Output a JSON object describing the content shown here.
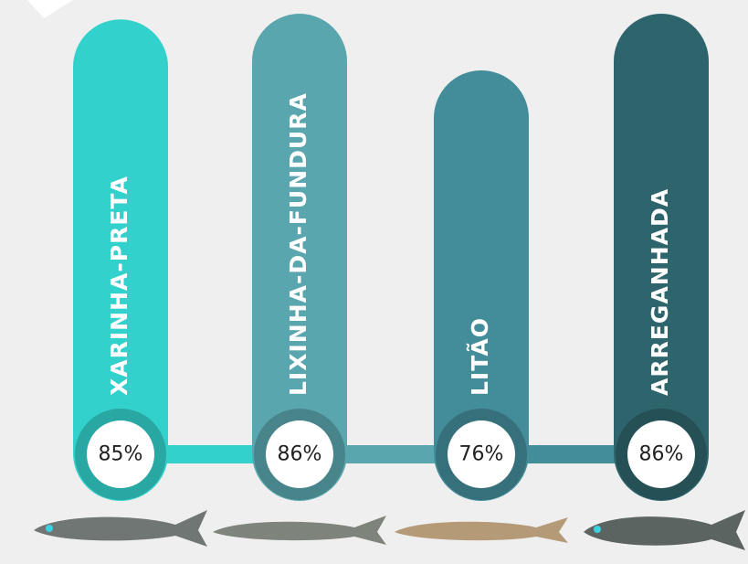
{
  "chart_data": {
    "type": "bar",
    "categories": [
      "XARINHA-PRETA",
      "LIXINHA-DA-FUNDURA",
      "LITÃO",
      "ARREGANHADA"
    ],
    "values": [
      85,
      86,
      76,
      86
    ],
    "value_labels": [
      "85%",
      "86%",
      "76%",
      "86%"
    ],
    "colors": [
      "#33d1cb",
      "#5aa6ae",
      "#438c99",
      "#2e656c"
    ]
  }
}
